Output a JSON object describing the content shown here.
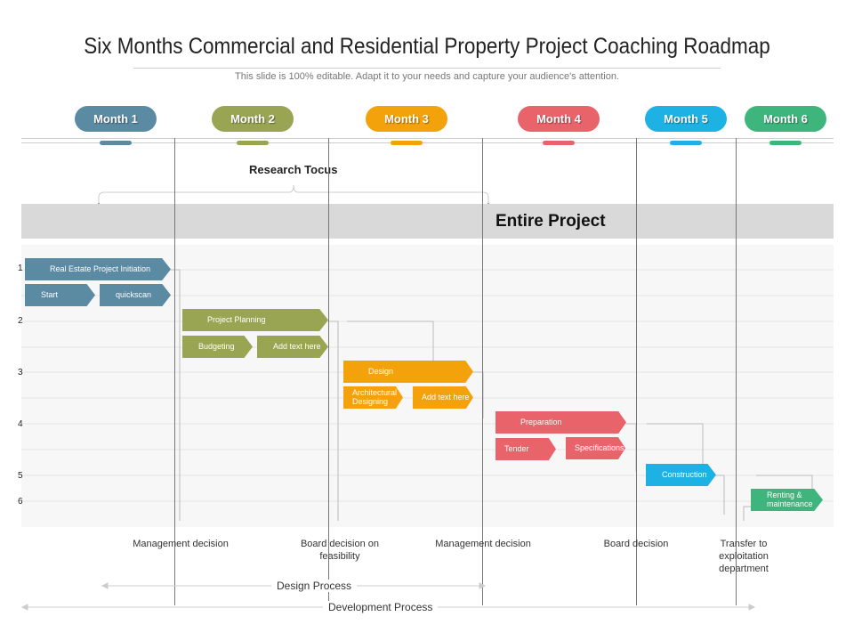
{
  "title": "Six Months Commercial and Residential Property Project Coaching Roadmap",
  "subtitle": "This slide is 100% editable. Adapt it to your needs and capture your audience's attention.",
  "months": [
    {
      "label": "Month 1",
      "color": "#5b8aa3"
    },
    {
      "label": "Month 2",
      "color": "#9aa553"
    },
    {
      "label": "Month 3",
      "color": "#f4a20b"
    },
    {
      "label": "Month 4",
      "color": "#e8646a"
    },
    {
      "label": "Month 5",
      "color": "#1db2e3"
    },
    {
      "label": "Month 6",
      "color": "#3db57c"
    }
  ],
  "research_label": "Research Tocus",
  "band_label": "Entire Project",
  "row_numbers": [
    "1",
    "2",
    "3",
    "4",
    "5",
    "6"
  ],
  "tasks": [
    {
      "label": "Real Estate Project Initiation",
      "color": "#5b8aa3"
    },
    {
      "label": "Start",
      "color": "#5b8aa3"
    },
    {
      "label": "quickscan",
      "color": "#5b8aa3"
    },
    {
      "label": "Project Planning",
      "color": "#9aa553"
    },
    {
      "label": "Budgeting",
      "color": "#9aa553"
    },
    {
      "label": "Add text here",
      "color": "#9aa553"
    },
    {
      "label": "Design",
      "color": "#f4a20b"
    },
    {
      "label": "Architectural Designing",
      "color": "#f4a20b"
    },
    {
      "label": "Add text here",
      "color": "#f4a20b"
    },
    {
      "label": "Preparation",
      "color": "#e8646a"
    },
    {
      "label": "Tender",
      "color": "#e8646a"
    },
    {
      "label": "Specifications",
      "color": "#e8646a"
    },
    {
      "label": "Construction",
      "color": "#1db2e3"
    },
    {
      "label": "Renting & maintenance",
      "color": "#3db57c"
    }
  ],
  "milestones": [
    "Management decision",
    "Board decision on feasibility",
    "Management decision",
    "Board decision",
    "Transfer to exploitation department"
  ],
  "processes": {
    "design": "Design Process",
    "development": "Development Process"
  }
}
